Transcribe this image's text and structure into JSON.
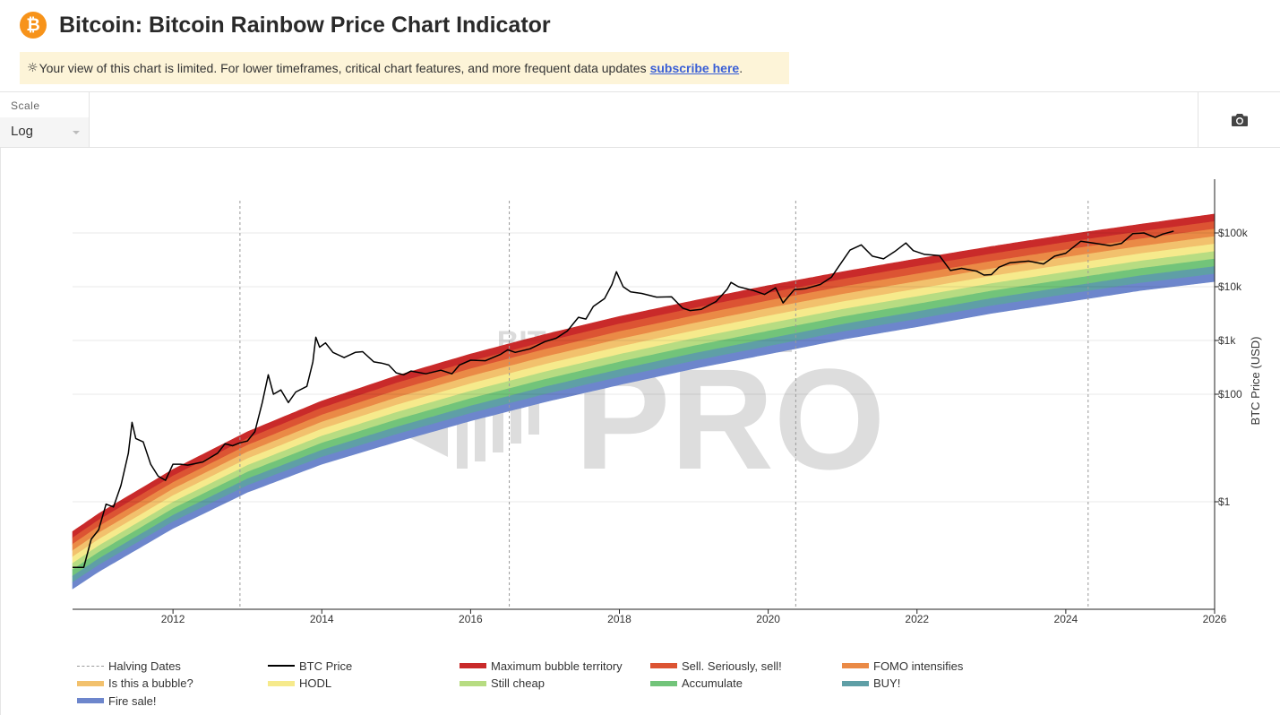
{
  "header": {
    "logo_symbol": "₿",
    "title": "Bitcoin: Bitcoin Rainbow Price Chart Indicator"
  },
  "notice": {
    "icon": "sun-icon",
    "text": "Your view of this chart is limited. For lower timeframes, critical chart features, and more frequent data updates",
    "link_label": "subscribe here",
    "end": "."
  },
  "toolbar": {
    "scale_label": "Scale",
    "scale_value": "Log",
    "camera_icon": "camera-icon"
  },
  "watermark": {
    "line1": "BITCOIN MAGAZINE",
    "line2": "PRO"
  },
  "colors": {
    "accent": "#f7931a",
    "link": "#3a5fd6",
    "notice_bg": "#fdf4d8"
  },
  "chart_data": {
    "type": "line",
    "title": "Bitcoin: Bitcoin Rainbow Price Chart Indicator",
    "xlabel": "",
    "ylabel": "BTC Price (USD)",
    "y_scale": "log",
    "xlim": [
      2010.65,
      2026.0
    ],
    "ylim": [
      0.01,
      1000000
    ],
    "x_ticks": [
      "2012",
      "2014",
      "2016",
      "2018",
      "2020",
      "2022",
      "2024",
      "2026"
    ],
    "y_ticks": [
      {
        "value": 1,
        "label": "$1"
      },
      {
        "value": 100,
        "label": "$100"
      },
      {
        "value": 1000,
        "label": "$1k"
      },
      {
        "value": 10000,
        "label": "$10k"
      },
      {
        "value": 100000,
        "label": "$100k"
      }
    ],
    "halving_dates": [
      2012.9,
      2016.52,
      2020.37,
      2024.3
    ],
    "bands": [
      {
        "name": "Maximum bubble territory",
        "color": "#c92a2a"
      },
      {
        "name": "Sell. Seriously, sell!",
        "color": "#dc5433"
      },
      {
        "name": "FOMO intensifies",
        "color": "#ea8a46"
      },
      {
        "name": "Is this a bubble?",
        "color": "#f2c16d"
      },
      {
        "name": "HODL",
        "color": "#f6ea8c"
      },
      {
        "name": "Still cheap",
        "color": "#b7dc82"
      },
      {
        "name": "Accumulate",
        "color": "#72c47a"
      },
      {
        "name": "BUY!",
        "color": "#5f9fa6"
      },
      {
        "name": "Fire sale!",
        "color": "#6d86cc"
      }
    ],
    "band_bounds": {
      "lower": [
        [
          2010.65,
          0.024
        ],
        [
          2011,
          0.05
        ],
        [
          2012,
          0.32
        ],
        [
          2013,
          1.5
        ],
        [
          2014,
          5
        ],
        [
          2015,
          13
        ],
        [
          2016,
          32
        ],
        [
          2017,
          72
        ],
        [
          2018,
          150
        ],
        [
          2019,
          300
        ],
        [
          2020,
          560
        ],
        [
          2021,
          1050
        ],
        [
          2022,
          1800
        ],
        [
          2023,
          3200
        ],
        [
          2024,
          5200
        ],
        [
          2025,
          8500
        ],
        [
          2026,
          12500
        ]
      ],
      "upper": [
        [
          2010.65,
          0.28
        ],
        [
          2011,
          0.6
        ],
        [
          2012,
          4
        ],
        [
          2013,
          20
        ],
        [
          2014,
          75
        ],
        [
          2015,
          220
        ],
        [
          2016,
          560
        ],
        [
          2017,
          1300
        ],
        [
          2018,
          2800
        ],
        [
          2019,
          5500
        ],
        [
          2020,
          10500
        ],
        [
          2021,
          19000
        ],
        [
          2022,
          33000
        ],
        [
          2023,
          56000
        ],
        [
          2024,
          92000
        ],
        [
          2025,
          145000
        ],
        [
          2026,
          225000
        ]
      ]
    },
    "series": [
      {
        "name": "BTC Price",
        "color": "#000000",
        "points": [
          [
            2010.65,
            0.06
          ],
          [
            2010.8,
            0.06
          ],
          [
            2010.9,
            0.2
          ],
          [
            2011.0,
            0.3
          ],
          [
            2011.1,
            0.9
          ],
          [
            2011.2,
            0.8
          ],
          [
            2011.3,
            2.0
          ],
          [
            2011.4,
            8
          ],
          [
            2011.45,
            30
          ],
          [
            2011.5,
            15
          ],
          [
            2011.6,
            13
          ],
          [
            2011.7,
            5
          ],
          [
            2011.8,
            3
          ],
          [
            2011.9,
            2.5
          ],
          [
            2012.0,
            5
          ],
          [
            2012.1,
            5
          ],
          [
            2012.2,
            4.8
          ],
          [
            2012.4,
            5.5
          ],
          [
            2012.6,
            8
          ],
          [
            2012.7,
            12
          ],
          [
            2012.8,
            11
          ],
          [
            2012.9,
            12.5
          ],
          [
            2013.0,
            13.5
          ],
          [
            2013.1,
            20
          ],
          [
            2013.2,
            70
          ],
          [
            2013.28,
            230
          ],
          [
            2013.35,
            100
          ],
          [
            2013.45,
            120
          ],
          [
            2013.55,
            70
          ],
          [
            2013.65,
            110
          ],
          [
            2013.8,
            140
          ],
          [
            2013.88,
            400
          ],
          [
            2013.92,
            1150
          ],
          [
            2013.97,
            750
          ],
          [
            2014.05,
            900
          ],
          [
            2014.15,
            600
          ],
          [
            2014.3,
            480
          ],
          [
            2014.45,
            600
          ],
          [
            2014.55,
            620
          ],
          [
            2014.7,
            400
          ],
          [
            2014.8,
            380
          ],
          [
            2014.9,
            350
          ],
          [
            2015.0,
            250
          ],
          [
            2015.1,
            230
          ],
          [
            2015.2,
            270
          ],
          [
            2015.4,
            240
          ],
          [
            2015.6,
            280
          ],
          [
            2015.75,
            240
          ],
          [
            2015.85,
            350
          ],
          [
            2016.0,
            430
          ],
          [
            2016.2,
            420
          ],
          [
            2016.4,
            550
          ],
          [
            2016.5,
            670
          ],
          [
            2016.6,
            600
          ],
          [
            2016.8,
            700
          ],
          [
            2017.0,
            950
          ],
          [
            2017.15,
            1100
          ],
          [
            2017.3,
            1500
          ],
          [
            2017.45,
            2700
          ],
          [
            2017.55,
            2500
          ],
          [
            2017.65,
            4300
          ],
          [
            2017.8,
            6000
          ],
          [
            2017.9,
            11000
          ],
          [
            2017.96,
            19000
          ],
          [
            2018.05,
            10000
          ],
          [
            2018.15,
            8000
          ],
          [
            2018.3,
            7500
          ],
          [
            2018.5,
            6400
          ],
          [
            2018.7,
            6500
          ],
          [
            2018.85,
            4000
          ],
          [
            2018.95,
            3600
          ],
          [
            2019.1,
            3800
          ],
          [
            2019.3,
            5300
          ],
          [
            2019.45,
            9000
          ],
          [
            2019.5,
            12000
          ],
          [
            2019.6,
            10000
          ],
          [
            2019.8,
            8500
          ],
          [
            2019.95,
            7200
          ],
          [
            2020.1,
            9500
          ],
          [
            2020.2,
            5000
          ],
          [
            2020.35,
            8800
          ],
          [
            2020.5,
            9200
          ],
          [
            2020.7,
            11000
          ],
          [
            2020.85,
            15000
          ],
          [
            2020.95,
            24000
          ],
          [
            2021.1,
            48000
          ],
          [
            2021.25,
            60000
          ],
          [
            2021.4,
            37000
          ],
          [
            2021.55,
            33000
          ],
          [
            2021.7,
            45000
          ],
          [
            2021.85,
            65000
          ],
          [
            2021.95,
            47000
          ],
          [
            2022.1,
            40000
          ],
          [
            2022.3,
            38000
          ],
          [
            2022.45,
            20000
          ],
          [
            2022.6,
            22000
          ],
          [
            2022.8,
            19500
          ],
          [
            2022.9,
            16500
          ],
          [
            2023.0,
            16800
          ],
          [
            2023.1,
            23000
          ],
          [
            2023.25,
            28000
          ],
          [
            2023.5,
            30000
          ],
          [
            2023.7,
            26500
          ],
          [
            2023.85,
            37000
          ],
          [
            2024.0,
            42000
          ],
          [
            2024.2,
            70000
          ],
          [
            2024.4,
            64000
          ],
          [
            2024.6,
            58000
          ],
          [
            2024.75,
            64000
          ],
          [
            2024.9,
            97000
          ],
          [
            2025.05,
            100000
          ],
          [
            2025.2,
            83000
          ],
          [
            2025.3,
            95000
          ],
          [
            2025.45,
            108000
          ]
        ]
      }
    ],
    "legend": [
      {
        "label": "Halving Dates",
        "kind": "dash",
        "color": "#999999"
      },
      {
        "label": "BTC Price",
        "kind": "line",
        "color": "#000000"
      },
      {
        "label": "Maximum bubble territory",
        "kind": "band",
        "color": "#c92a2a"
      },
      {
        "label": "Sell. Seriously, sell!",
        "kind": "band",
        "color": "#dc5433"
      },
      {
        "label": "FOMO intensifies",
        "kind": "band",
        "color": "#ea8a46"
      },
      {
        "label": "Is this a bubble?",
        "kind": "band",
        "color": "#f2c16d"
      },
      {
        "label": "HODL",
        "kind": "band",
        "color": "#f6ea8c"
      },
      {
        "label": "Still cheap",
        "kind": "band",
        "color": "#b7dc82"
      },
      {
        "label": "Accumulate",
        "kind": "band",
        "color": "#72c47a"
      },
      {
        "label": "BUY!",
        "kind": "band",
        "color": "#5f9fa6"
      },
      {
        "label": "Fire sale!",
        "kind": "band",
        "color": "#6d86cc"
      }
    ]
  }
}
